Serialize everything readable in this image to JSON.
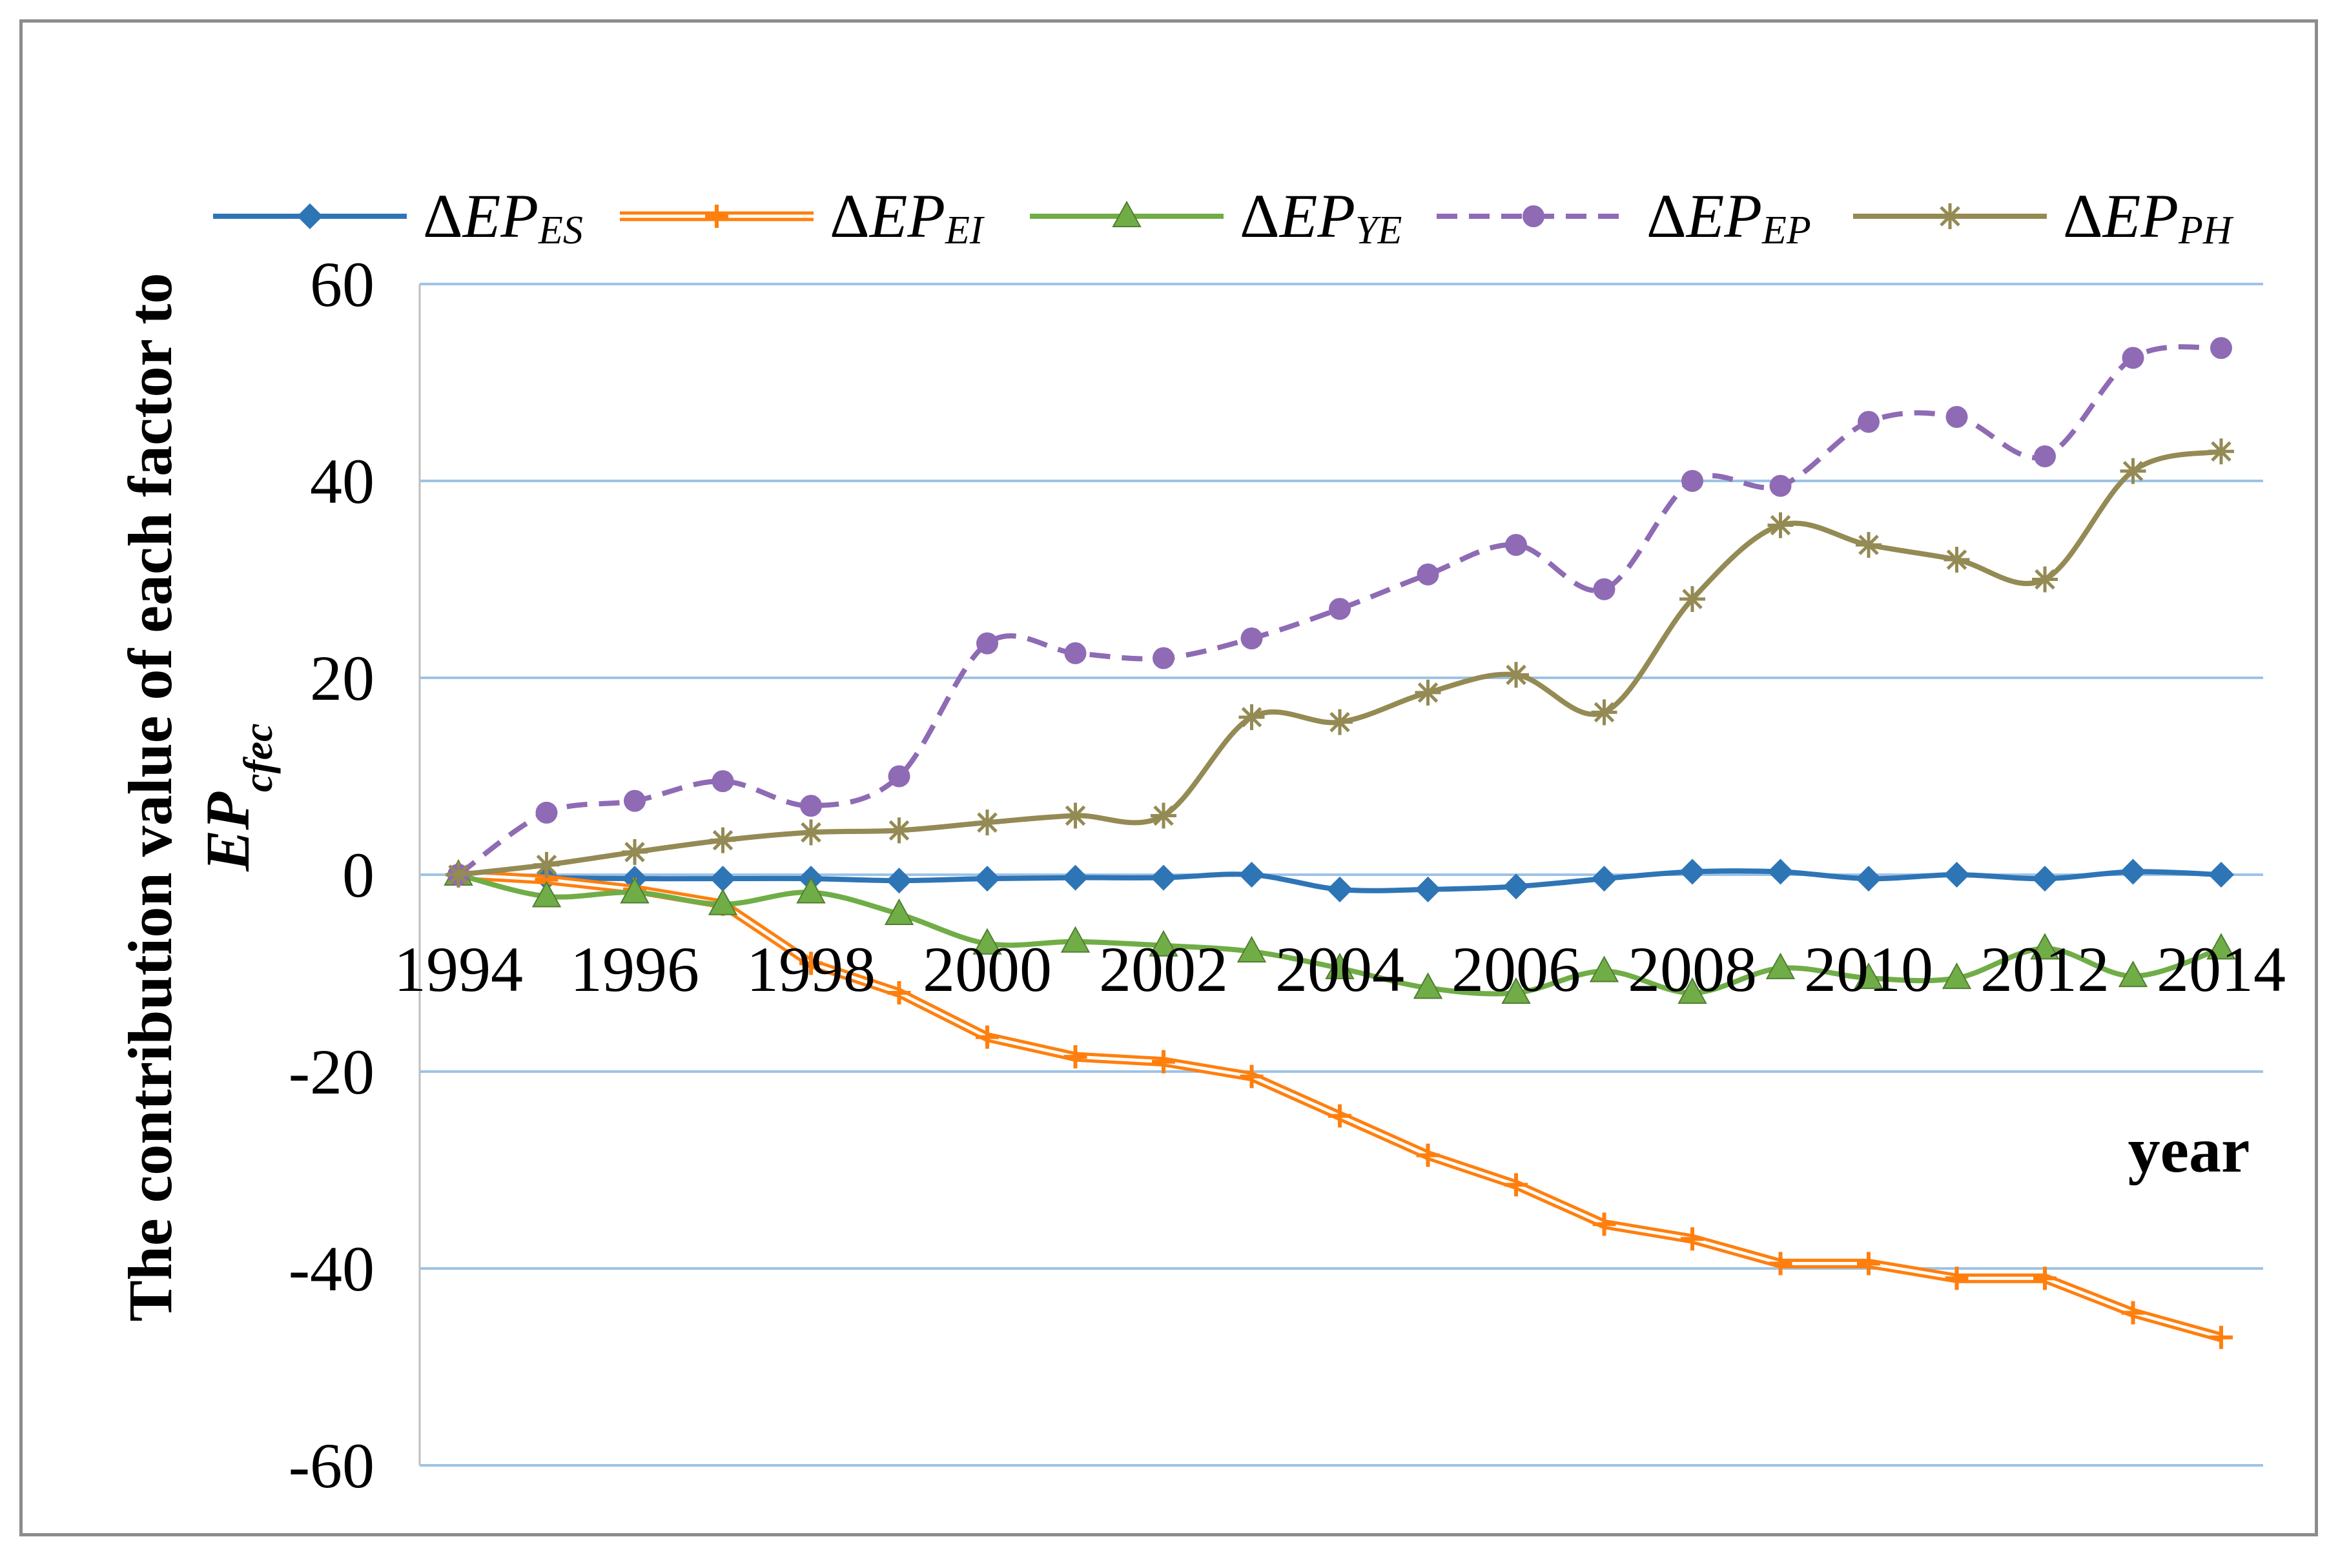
{
  "chart_data": {
    "type": "line",
    "title": "",
    "xlabel": "year",
    "ylabel": "The contribution value of each factor to",
    "ylabel_line2": "EP",
    "ylabel_line2_sub": "cfec",
    "ylim": [
      -60,
      60
    ],
    "yticks": [
      -60,
      -40,
      -20,
      0,
      20,
      40,
      60
    ],
    "x": [
      1994,
      1995,
      1996,
      1997,
      1998,
      1999,
      2000,
      2001,
      2002,
      2003,
      2004,
      2005,
      2006,
      2007,
      2008,
      2009,
      2010,
      2011,
      2012,
      2013,
      2014
    ],
    "xtick_labels": [
      "1994",
      "1996",
      "1998",
      "2000",
      "2002",
      "2004",
      "2006",
      "2008",
      "2010",
      "2012",
      "2014"
    ],
    "legend_position": "top",
    "grid": true,
    "series": [
      {
        "name": "ΔEP_ES",
        "label_delta": "Δ",
        "label_main": "EP",
        "label_sub": "ES",
        "color": "#2e75b6",
        "marker": "diamond",
        "style": "solid",
        "values": [
          0,
          -0.3,
          -0.4,
          -0.4,
          -0.4,
          -0.6,
          -0.4,
          -0.3,
          -0.3,
          0,
          -1.5,
          -1.5,
          -1.2,
          -0.4,
          0.3,
          0.3,
          -0.4,
          0,
          -0.4,
          0.3,
          0
        ]
      },
      {
        "name": "ΔEP_EI",
        "label_delta": "Δ",
        "label_main": "EP",
        "label_sub": "EI",
        "color": "#ff7f0e",
        "marker": "plus",
        "style": "double",
        "values": [
          0,
          -0.5,
          -1.5,
          -3,
          -9,
          -12,
          -16.5,
          -18.5,
          -19,
          -20.5,
          -24.5,
          -28.5,
          -31.5,
          -35.5,
          -37,
          -39.5,
          -39.5,
          -41,
          -41,
          -44.5,
          -47
        ]
      },
      {
        "name": "ΔEP_YE",
        "label_delta": "Δ",
        "label_main": "EP",
        "label_sub": "YE",
        "color": "#70ad47",
        "marker": "triangle",
        "style": "solid",
        "values": [
          0,
          -2.2,
          -1.8,
          -3,
          -1.8,
          -4,
          -7,
          -6.8,
          -7.2,
          -7.8,
          -9.5,
          -11.5,
          -12,
          -9.8,
          -12,
          -9.5,
          -10.5,
          -10.5,
          -7.5,
          -10.3,
          -7.5
        ]
      },
      {
        "name": "ΔEP_EP",
        "label_delta": "Δ",
        "label_main": "EP",
        "label_sub": "EP",
        "color": "#8e6bb4",
        "marker": "circle",
        "style": "dashed",
        "values": [
          0,
          6.3,
          7.5,
          9.5,
          7,
          10,
          23.5,
          22.5,
          22,
          24,
          27,
          30.5,
          33.5,
          29,
          40,
          39.5,
          46,
          46.5,
          42.5,
          52.5,
          53.5
        ]
      },
      {
        "name": "ΔEP_PH",
        "label_delta": "Δ",
        "label_main": "EP",
        "label_sub": "PH",
        "color": "#948a54",
        "marker": "star",
        "style": "solid",
        "values": [
          0,
          1,
          2.3,
          3.5,
          4.3,
          4.5,
          5.3,
          6,
          6,
          16,
          15.5,
          18.5,
          20.3,
          16.5,
          28,
          35.5,
          33.5,
          32,
          30,
          41,
          43
        ]
      }
    ]
  }
}
